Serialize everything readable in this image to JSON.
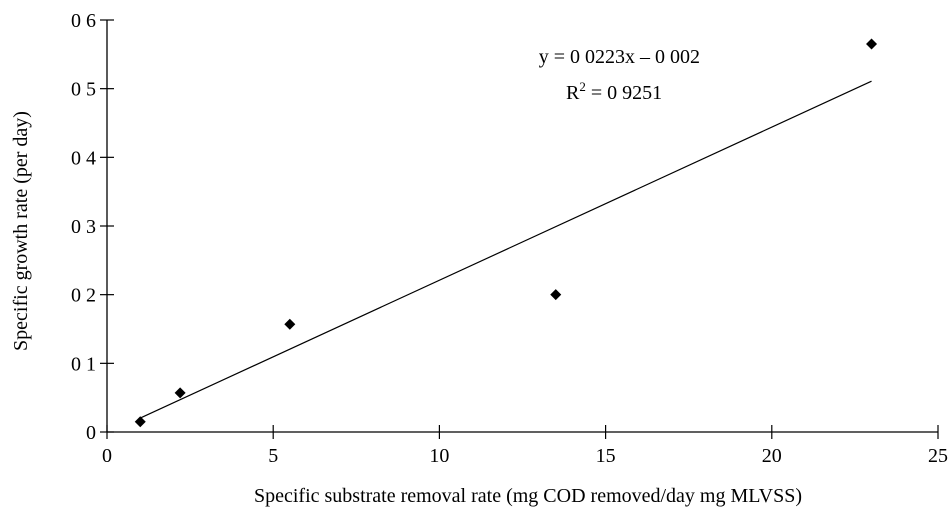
{
  "chart_data": {
    "type": "scatter",
    "title": "",
    "xlabel": "Specific substrate removal rate (mg COD removed/day  mg MLVSS)",
    "ylabel": "Specific growth rate (per day)",
    "xlim": [
      0,
      25
    ],
    "ylim": [
      0,
      0.6
    ],
    "x_ticks": [
      0,
      5,
      10,
      15,
      20,
      25
    ],
    "y_ticks": [
      0,
      0.1,
      0.2,
      0.3,
      0.4,
      0.5,
      0.6
    ],
    "x_tick_labels": [
      "0",
      "5",
      "10",
      "15",
      "20",
      "25"
    ],
    "y_tick_labels": [
      "0",
      "0 1",
      "0 2",
      "0 3",
      "0 4",
      "0 5",
      "0 6"
    ],
    "grid": false,
    "legend": "none",
    "series": [
      {
        "marker": "diamond",
        "color": "#000000",
        "points": [
          {
            "x": 1.0,
            "y": 0.015
          },
          {
            "x": 2.2,
            "y": 0.057
          },
          {
            "x": 5.5,
            "y": 0.157
          },
          {
            "x": 13.5,
            "y": 0.2
          },
          {
            "x": 23.0,
            "y": 0.565
          }
        ]
      }
    ],
    "trendline": {
      "slope": 0.0223,
      "intercept": -0.002,
      "x_range": [
        1.0,
        23.0
      ],
      "equation_label": "y = 0 0223x – 0 002",
      "r2_prefix": "R",
      "r2_sup": "2",
      "r2_value": " = 0 9251"
    }
  }
}
